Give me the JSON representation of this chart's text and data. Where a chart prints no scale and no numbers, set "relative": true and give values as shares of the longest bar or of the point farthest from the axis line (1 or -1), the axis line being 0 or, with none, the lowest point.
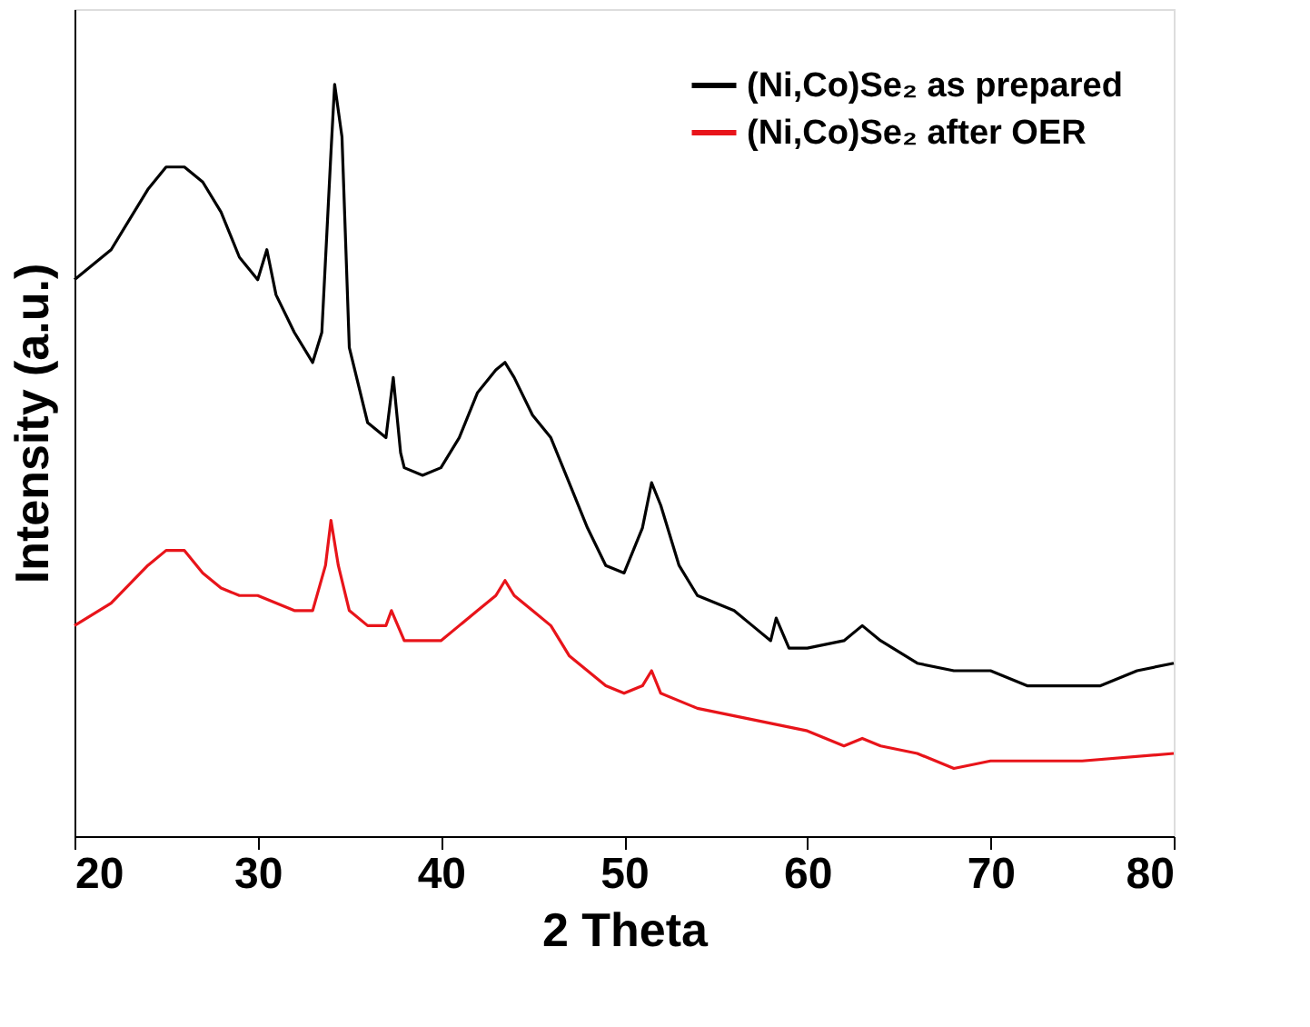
{
  "chart_data": {
    "type": "line",
    "relative": true,
    "xlabel": "2 Theta",
    "ylabel": "Intensity (a.u.)",
    "xlim": [
      20,
      80
    ],
    "xticks": [
      20,
      30,
      40,
      50,
      60,
      70,
      80
    ],
    "legend": "top right",
    "grid": false,
    "marker": "none",
    "line_style": "solid",
    "series": [
      {
        "name": "(Ni,Co)Se₂ as prepared",
        "color": "#000000",
        "x": [
          20,
          22,
          24,
          25,
          26,
          27,
          28,
          29,
          30,
          30.5,
          31,
          32,
          33,
          33.5,
          34,
          34.2,
          34.6,
          35,
          36,
          37,
          37.4,
          37.8,
          38,
          39,
          40,
          41,
          42,
          43,
          43.5,
          44,
          45,
          46,
          47,
          48,
          49,
          50,
          51,
          51.5,
          52,
          53,
          54,
          55,
          56,
          57,
          58,
          58.3,
          59,
          60,
          62,
          63,
          64,
          66,
          68,
          70,
          72,
          74,
          76,
          78,
          80
        ],
        "values": [
          0.74,
          0.78,
          0.86,
          0.89,
          0.89,
          0.87,
          0.83,
          0.77,
          0.74,
          0.78,
          0.72,
          0.67,
          0.63,
          0.67,
          0.91,
          1.0,
          0.93,
          0.65,
          0.55,
          0.53,
          0.61,
          0.51,
          0.49,
          0.48,
          0.49,
          0.53,
          0.59,
          0.62,
          0.63,
          0.61,
          0.56,
          0.53,
          0.47,
          0.41,
          0.36,
          0.35,
          0.41,
          0.47,
          0.44,
          0.36,
          0.32,
          0.31,
          0.3,
          0.28,
          0.26,
          0.29,
          0.25,
          0.25,
          0.26,
          0.28,
          0.26,
          0.23,
          0.22,
          0.22,
          0.2,
          0.2,
          0.2,
          0.22,
          0.23
        ]
      },
      {
        "name": "(Ni,Co)Se₂ after OER",
        "color": "#e8141a",
        "x": [
          20,
          22,
          24,
          25,
          26,
          27,
          28,
          29,
          30,
          31,
          32,
          33,
          33.7,
          34,
          34.4,
          35,
          36,
          37,
          37.3,
          38,
          39,
          40,
          41,
          42,
          43,
          43.5,
          44,
          45,
          46,
          47,
          48,
          49,
          50,
          51,
          51.5,
          52,
          54,
          56,
          58,
          60,
          62,
          63,
          64,
          66,
          68,
          70,
          75,
          80
        ],
        "values": [
          0.28,
          0.31,
          0.36,
          0.38,
          0.38,
          0.35,
          0.33,
          0.32,
          0.32,
          0.31,
          0.3,
          0.3,
          0.36,
          0.42,
          0.36,
          0.3,
          0.28,
          0.28,
          0.3,
          0.26,
          0.26,
          0.26,
          0.28,
          0.3,
          0.32,
          0.34,
          0.32,
          0.3,
          0.28,
          0.24,
          0.22,
          0.2,
          0.19,
          0.2,
          0.22,
          0.19,
          0.17,
          0.16,
          0.15,
          0.14,
          0.12,
          0.13,
          0.12,
          0.11,
          0.09,
          0.1,
          0.1,
          0.11
        ]
      }
    ]
  }
}
